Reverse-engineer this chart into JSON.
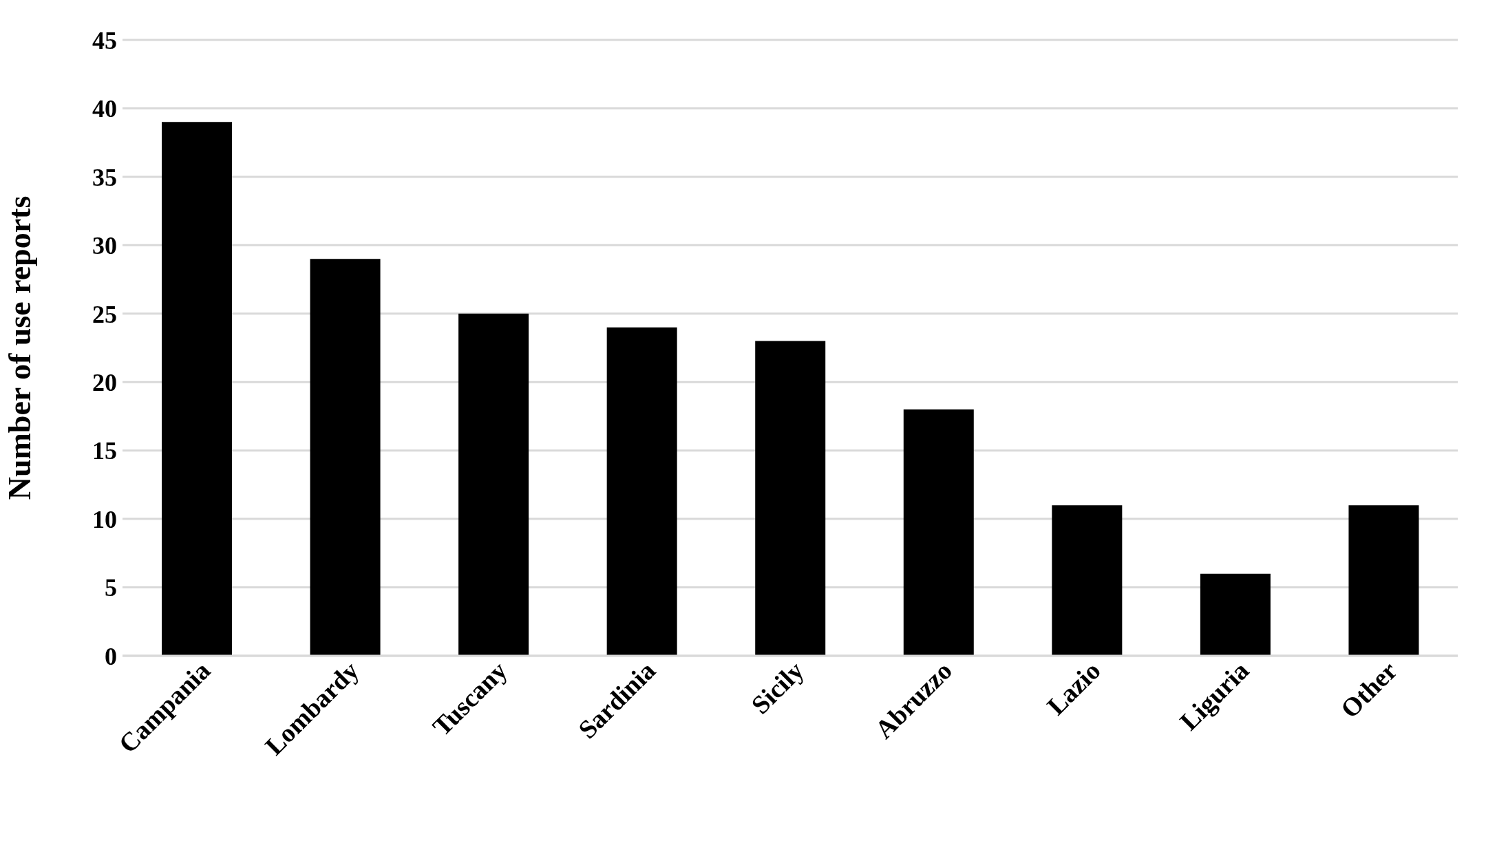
{
  "chart_data": {
    "type": "bar",
    "ylabel": "Number of use reports",
    "categories": [
      "Campania",
      "Lombardy",
      "Tuscany",
      "Sardinia",
      "Sicily",
      "Abruzzo",
      "Lazio",
      "Liguria",
      "Other"
    ],
    "values": [
      39,
      29,
      25,
      24,
      23,
      18,
      11,
      6,
      11
    ],
    "color": "#000000",
    "ylim": [
      0,
      45
    ],
    "yticks": [
      0,
      5,
      10,
      15,
      20,
      25,
      30,
      35,
      40,
      45
    ],
    "grid": "y"
  }
}
